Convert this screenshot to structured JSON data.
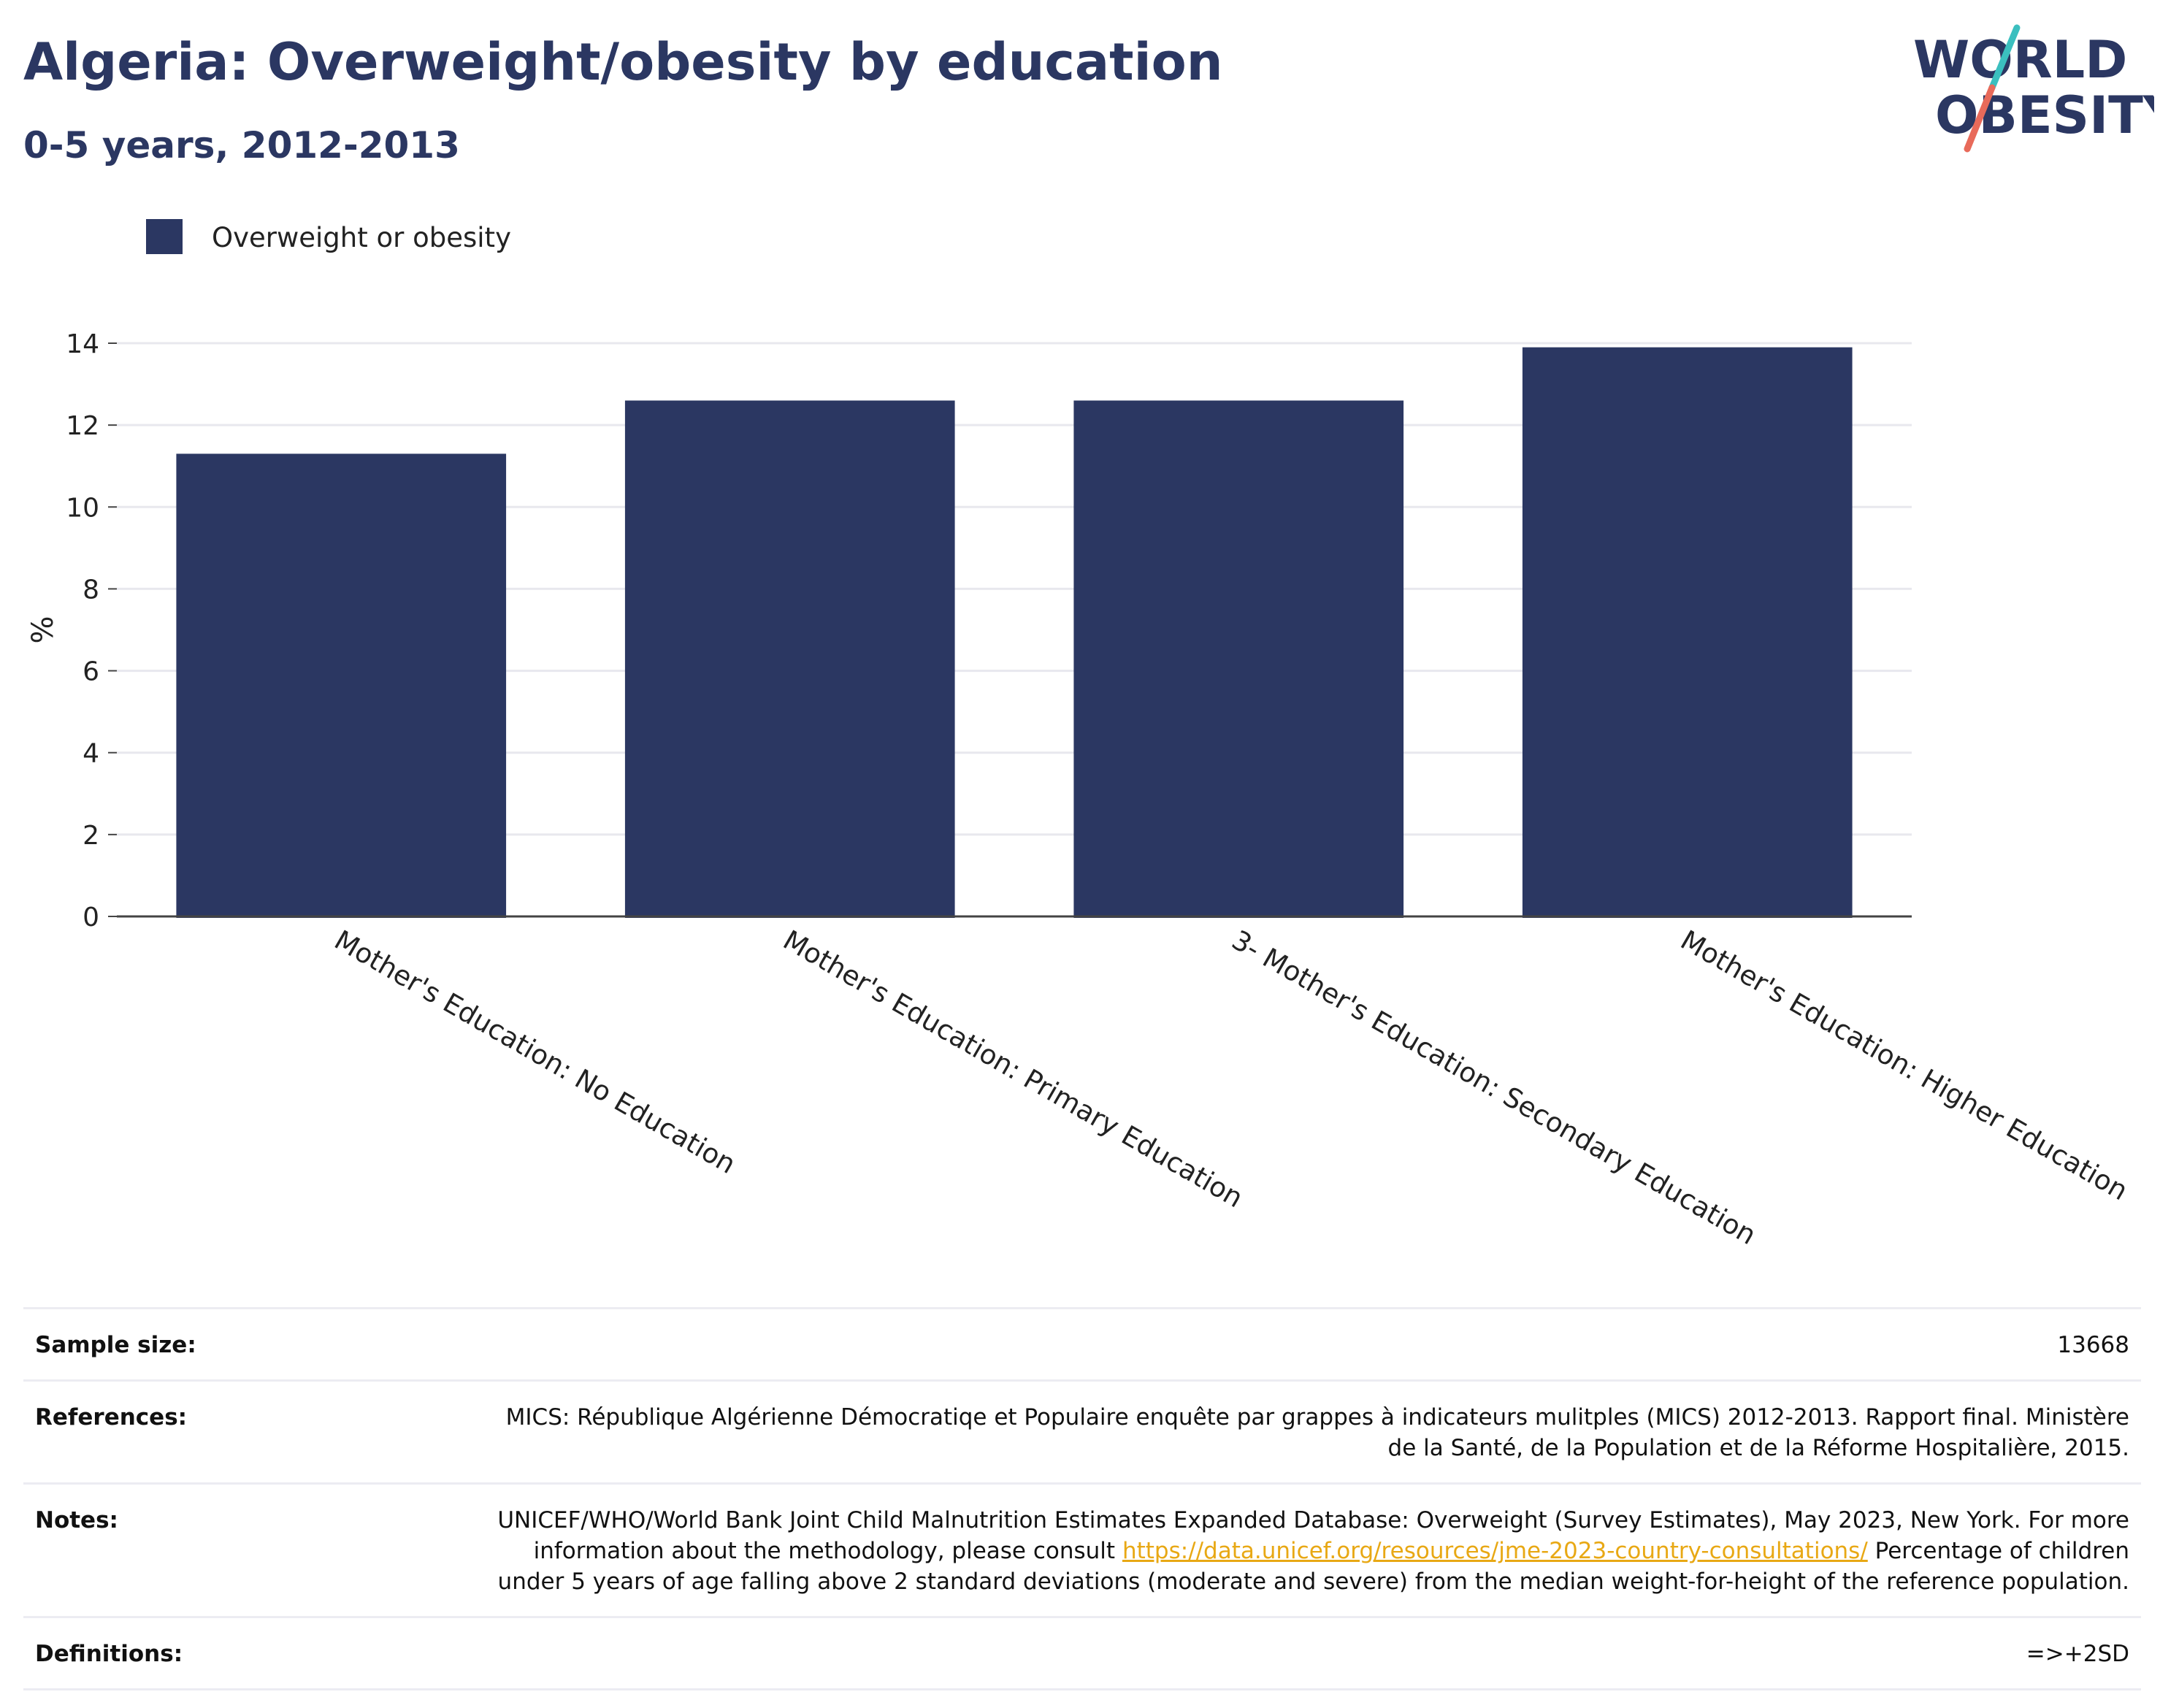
{
  "header": {
    "title": "Algeria: Overweight/obesity by education",
    "subtitle": "0-5 years, 2012-2013"
  },
  "logo": {
    "line1": "WORLD",
    "line2": "OBESITY",
    "accent_colors": [
      "#3bbfbf",
      "#e86a5a"
    ],
    "text_color": "#2b3762"
  },
  "chart_data": {
    "type": "bar",
    "categories": [
      "Mother's Education: No Education",
      "Mother's Education: Primary Education",
      "3- Mother's Education: Secondary Education",
      "Mother's Education: Higher Education"
    ],
    "series": [
      {
        "name": "Overweight or obesity",
        "values": [
          11.3,
          12.6,
          12.6,
          13.9
        ],
        "color": "#2b3762"
      }
    ],
    "ylabel": "%",
    "ylim": [
      0,
      14
    ],
    "yticks": [
      0,
      2,
      4,
      6,
      8,
      10,
      12,
      14
    ],
    "grid": true,
    "legend_position": "top-left"
  },
  "footer": {
    "rows": [
      {
        "label": "Sample size:",
        "value": "13668"
      },
      {
        "label": "References:",
        "value": "MICS: République Algérienne Démocratiqe et Populaire enquête par grappes à indicateurs mulitples (MICS) 2012-2013. Rapport final. Ministère de la Santé, de la Population et de la Réforme Hospitalière, 2015."
      },
      {
        "label": "Notes:",
        "value_before": "UNICEF/WHO/World Bank Joint Child Malnutrition Estimates Expanded Database: Overweight (Survey Estimates), May 2023, New York. For more information about the methodology, please consult ",
        "link": "https://data.unicef.org/resources/jme-2023-country-consultations/",
        "value_after": " Percentage of children under 5 years of age falling above 2 standard deviations (moderate and severe) from the median weight-for-height of the reference population."
      },
      {
        "label": "Definitions:",
        "value": "=>+2SD"
      }
    ]
  }
}
